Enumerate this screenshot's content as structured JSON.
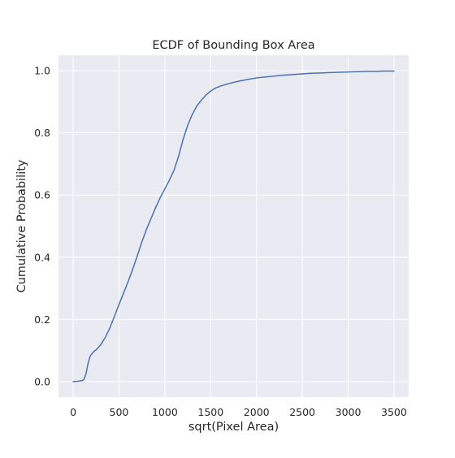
{
  "chart_data": {
    "type": "line",
    "title": "ECDF of Bounding Box Area",
    "xlabel": "sqrt(Pixel Area)",
    "ylabel": "Cumulative Probability",
    "xlim": [
      -160,
      3660
    ],
    "ylim": [
      -0.05,
      1.05
    ],
    "xticks": [
      0,
      500,
      1000,
      1500,
      2000,
      2500,
      3000,
      3500
    ],
    "yticks": [
      0.0,
      0.2,
      0.4,
      0.6,
      0.8,
      1.0
    ],
    "xtick_labels": [
      "0",
      "500",
      "1000",
      "1500",
      "2000",
      "2500",
      "3000",
      "3500"
    ],
    "ytick_labels": [
      "0.0",
      "0.2",
      "0.4",
      "0.6",
      "0.8",
      "1.0"
    ],
    "grid": true,
    "colors": {
      "plot_background": "#eaeaf2",
      "grid": "#ffffff",
      "line": "#4c72b0"
    },
    "series": [
      {
        "x": [
          0,
          50,
          100,
          120,
          140,
          160,
          180,
          200,
          220,
          250,
          300,
          350,
          400,
          450,
          500,
          550,
          600,
          650,
          700,
          750,
          800,
          850,
          900,
          950,
          1000,
          1050,
          1100,
          1150,
          1200,
          1250,
          1300,
          1350,
          1400,
          1450,
          1500,
          1550,
          1600,
          1700,
          1800,
          1900,
          2000,
          2100,
          2200,
          2300,
          2400,
          2500,
          2600,
          2700,
          2800,
          2900,
          3000,
          3100,
          3200,
          3300,
          3400,
          3500
        ],
        "y": [
          0.0,
          0.001,
          0.003,
          0.008,
          0.025,
          0.055,
          0.078,
          0.088,
          0.095,
          0.102,
          0.118,
          0.142,
          0.172,
          0.21,
          0.248,
          0.285,
          0.322,
          0.362,
          0.405,
          0.45,
          0.49,
          0.525,
          0.56,
          0.592,
          0.62,
          0.648,
          0.68,
          0.725,
          0.78,
          0.825,
          0.86,
          0.887,
          0.906,
          0.922,
          0.935,
          0.944,
          0.95,
          0.959,
          0.966,
          0.972,
          0.977,
          0.98,
          0.983,
          0.986,
          0.988,
          0.99,
          0.992,
          0.993,
          0.994,
          0.995,
          0.996,
          0.997,
          0.998,
          0.998,
          0.999,
          0.999
        ]
      }
    ]
  }
}
